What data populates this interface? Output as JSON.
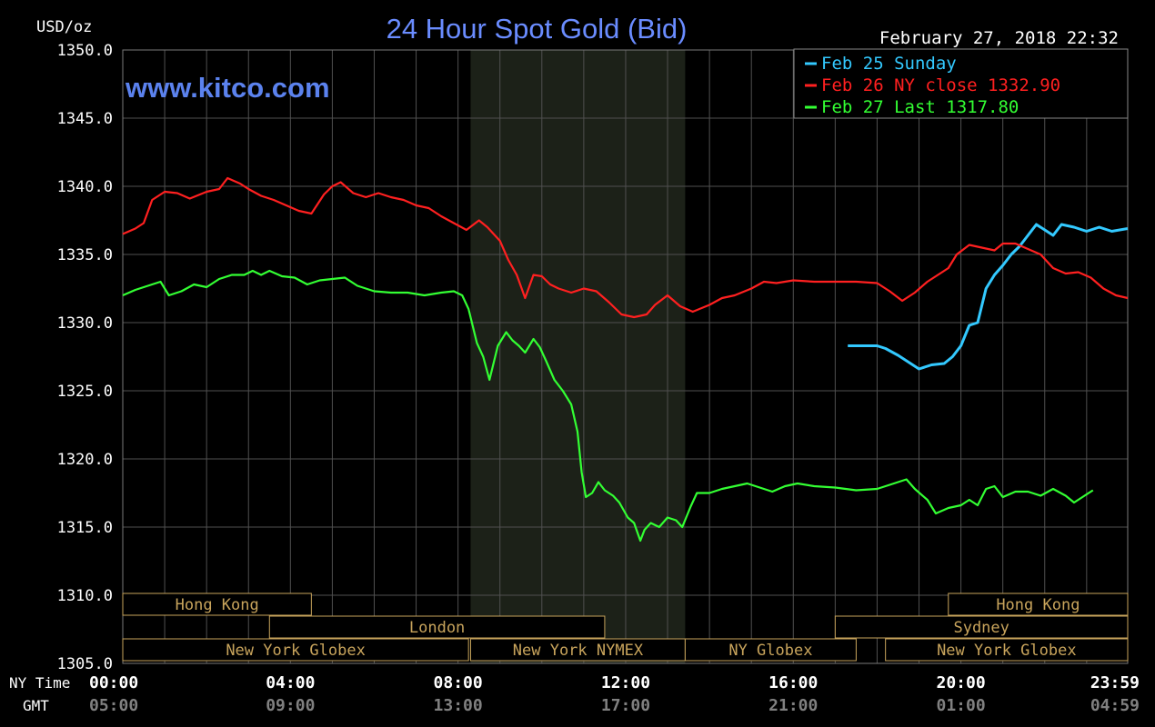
{
  "chart_data": {
    "type": "line",
    "title": "24 Hour Spot Gold (Bid)",
    "watermark": "www.kitco.com",
    "timestamp": "February 27, 2018 22:32",
    "ylabel": "USD/oz",
    "ylim": [
      1305.0,
      1350.0
    ],
    "yticks": [
      "1350.0",
      "1345.0",
      "1340.0",
      "1335.0",
      "1330.0",
      "1325.0",
      "1320.0",
      "1315.0",
      "1310.0",
      "1305.0"
    ],
    "ytick_values": [
      1350,
      1345,
      1340,
      1335,
      1330,
      1325,
      1320,
      1315,
      1310,
      1305
    ],
    "xaxis_label": "NY Time",
    "xaxis_label2": "GMT",
    "xticks": [
      "00:00",
      "04:00",
      "08:00",
      "12:00",
      "16:00",
      "20:00",
      "23:59"
    ],
    "xtick_hours": [
      0,
      4,
      8,
      12,
      16,
      20,
      23.98
    ],
    "gmt_ticks": [
      "05:00",
      "09:00",
      "13:00",
      "17:00",
      "21:00",
      "01:00",
      "04:59"
    ],
    "grid": true,
    "legend_placement": "top-right",
    "colors": {
      "background": "#000000",
      "grid": "#505050",
      "axis_text": "#ffffff",
      "gmt_text": "#808080",
      "title": "#6a8cff",
      "session_box": "#c8a45c",
      "nymex_shade": "#1c2118"
    },
    "shaded_period": [
      8.3,
      13.42
    ],
    "series": [
      {
        "name": "Feb 25 Sunday",
        "label": "Feb 25 Sunday",
        "color": "#33c9ff",
        "points": [
          [
            17.3,
            1328.3
          ],
          [
            18.0,
            1328.3
          ],
          [
            18.2,
            1328.1
          ],
          [
            18.5,
            1327.6
          ],
          [
            18.8,
            1327.0
          ],
          [
            19.0,
            1326.6
          ],
          [
            19.3,
            1326.9
          ],
          [
            19.6,
            1327.0
          ],
          [
            19.8,
            1327.5
          ],
          [
            20.0,
            1328.3
          ],
          [
            20.2,
            1329.8
          ],
          [
            20.4,
            1330.0
          ],
          [
            20.6,
            1332.5
          ],
          [
            20.8,
            1333.5
          ],
          [
            21.0,
            1334.2
          ],
          [
            21.2,
            1335.0
          ],
          [
            21.4,
            1335.6
          ],
          [
            21.6,
            1336.4
          ],
          [
            21.8,
            1337.2
          ],
          [
            22.0,
            1336.8
          ],
          [
            22.2,
            1336.4
          ],
          [
            22.4,
            1337.2
          ],
          [
            22.7,
            1337.0
          ],
          [
            23.0,
            1336.7
          ],
          [
            23.3,
            1337.0
          ],
          [
            23.6,
            1336.7
          ],
          [
            23.98,
            1336.9
          ]
        ]
      },
      {
        "name": "Feb 26 NY close",
        "label": "Feb 26 NY close 1332.90",
        "color": "#ff2020",
        "points": [
          [
            0.0,
            1336.5
          ],
          [
            0.3,
            1336.9
          ],
          [
            0.5,
            1337.3
          ],
          [
            0.7,
            1339.0
          ],
          [
            1.0,
            1339.6
          ],
          [
            1.3,
            1339.5
          ],
          [
            1.6,
            1339.1
          ],
          [
            2.0,
            1339.6
          ],
          [
            2.3,
            1339.8
          ],
          [
            2.5,
            1340.6
          ],
          [
            2.8,
            1340.2
          ],
          [
            3.0,
            1339.8
          ],
          [
            3.3,
            1339.3
          ],
          [
            3.6,
            1339.0
          ],
          [
            3.9,
            1338.6
          ],
          [
            4.2,
            1338.2
          ],
          [
            4.5,
            1338.0
          ],
          [
            4.8,
            1339.4
          ],
          [
            5.0,
            1340.0
          ],
          [
            5.2,
            1340.3
          ],
          [
            5.5,
            1339.5
          ],
          [
            5.8,
            1339.2
          ],
          [
            6.1,
            1339.5
          ],
          [
            6.4,
            1339.2
          ],
          [
            6.7,
            1339.0
          ],
          [
            7.0,
            1338.6
          ],
          [
            7.3,
            1338.4
          ],
          [
            7.6,
            1337.8
          ],
          [
            7.9,
            1337.3
          ],
          [
            8.2,
            1336.8
          ],
          [
            8.5,
            1337.5
          ],
          [
            8.7,
            1337.0
          ],
          [
            9.0,
            1336.0
          ],
          [
            9.2,
            1334.6
          ],
          [
            9.4,
            1333.5
          ],
          [
            9.6,
            1331.8
          ],
          [
            9.8,
            1333.5
          ],
          [
            10.0,
            1333.4
          ],
          [
            10.2,
            1332.8
          ],
          [
            10.4,
            1332.5
          ],
          [
            10.7,
            1332.2
          ],
          [
            11.0,
            1332.5
          ],
          [
            11.3,
            1332.3
          ],
          [
            11.6,
            1331.5
          ],
          [
            11.9,
            1330.6
          ],
          [
            12.2,
            1330.4
          ],
          [
            12.5,
            1330.6
          ],
          [
            12.7,
            1331.3
          ],
          [
            13.0,
            1332.0
          ],
          [
            13.3,
            1331.2
          ],
          [
            13.6,
            1330.8
          ],
          [
            14.0,
            1331.3
          ],
          [
            14.3,
            1331.8
          ],
          [
            14.6,
            1332.0
          ],
          [
            15.0,
            1332.5
          ],
          [
            15.3,
            1333.0
          ],
          [
            15.6,
            1332.9
          ],
          [
            16.0,
            1333.1
          ],
          [
            16.5,
            1333.0
          ],
          [
            17.0,
            1333.0
          ],
          [
            17.5,
            1333.0
          ],
          [
            18.0,
            1332.9
          ],
          [
            18.3,
            1332.3
          ],
          [
            18.6,
            1331.6
          ],
          [
            18.9,
            1332.2
          ],
          [
            19.2,
            1333.0
          ],
          [
            19.5,
            1333.6
          ],
          [
            19.7,
            1334.0
          ],
          [
            19.9,
            1335.0
          ],
          [
            20.2,
            1335.7
          ],
          [
            20.5,
            1335.5
          ],
          [
            20.8,
            1335.3
          ],
          [
            21.0,
            1335.8
          ],
          [
            21.3,
            1335.8
          ],
          [
            21.6,
            1335.4
          ],
          [
            21.9,
            1335.0
          ],
          [
            22.2,
            1334.0
          ],
          [
            22.5,
            1333.6
          ],
          [
            22.8,
            1333.7
          ],
          [
            23.1,
            1333.3
          ],
          [
            23.4,
            1332.5
          ],
          [
            23.7,
            1332.0
          ],
          [
            23.98,
            1331.8
          ]
        ]
      },
      {
        "name": "Feb 27 Last",
        "label": "Feb 27 Last 1317.80",
        "color": "#33ff33",
        "points": [
          [
            0.0,
            1332.0
          ],
          [
            0.3,
            1332.4
          ],
          [
            0.6,
            1332.7
          ],
          [
            0.9,
            1333.0
          ],
          [
            1.1,
            1332.0
          ],
          [
            1.4,
            1332.3
          ],
          [
            1.7,
            1332.8
          ],
          [
            2.0,
            1332.6
          ],
          [
            2.3,
            1333.2
          ],
          [
            2.6,
            1333.5
          ],
          [
            2.9,
            1333.5
          ],
          [
            3.1,
            1333.8
          ],
          [
            3.3,
            1333.5
          ],
          [
            3.5,
            1333.8
          ],
          [
            3.8,
            1333.4
          ],
          [
            4.1,
            1333.3
          ],
          [
            4.4,
            1332.8
          ],
          [
            4.7,
            1333.1
          ],
          [
            5.0,
            1333.2
          ],
          [
            5.3,
            1333.3
          ],
          [
            5.6,
            1332.7
          ],
          [
            6.0,
            1332.3
          ],
          [
            6.4,
            1332.2
          ],
          [
            6.8,
            1332.2
          ],
          [
            7.2,
            1332.0
          ],
          [
            7.6,
            1332.2
          ],
          [
            7.9,
            1332.3
          ],
          [
            8.1,
            1332.0
          ],
          [
            8.25,
            1331.0
          ],
          [
            8.45,
            1328.5
          ],
          [
            8.6,
            1327.5
          ],
          [
            8.75,
            1325.8
          ],
          [
            8.95,
            1328.3
          ],
          [
            9.15,
            1329.3
          ],
          [
            9.3,
            1328.7
          ],
          [
            9.45,
            1328.3
          ],
          [
            9.6,
            1327.8
          ],
          [
            9.8,
            1328.8
          ],
          [
            9.95,
            1328.2
          ],
          [
            10.1,
            1327.2
          ],
          [
            10.3,
            1325.8
          ],
          [
            10.5,
            1325.0
          ],
          [
            10.7,
            1324.0
          ],
          [
            10.85,
            1322.0
          ],
          [
            10.95,
            1319.0
          ],
          [
            11.05,
            1317.2
          ],
          [
            11.2,
            1317.5
          ],
          [
            11.35,
            1318.3
          ],
          [
            11.5,
            1317.7
          ],
          [
            11.7,
            1317.3
          ],
          [
            11.85,
            1316.8
          ],
          [
            12.05,
            1315.7
          ],
          [
            12.2,
            1315.3
          ],
          [
            12.35,
            1314.0
          ],
          [
            12.45,
            1314.8
          ],
          [
            12.6,
            1315.3
          ],
          [
            12.8,
            1315.0
          ],
          [
            13.0,
            1315.7
          ],
          [
            13.2,
            1315.5
          ],
          [
            13.35,
            1315.0
          ],
          [
            13.55,
            1316.5
          ],
          [
            13.7,
            1317.5
          ],
          [
            14.0,
            1317.5
          ],
          [
            14.3,
            1317.8
          ],
          [
            14.6,
            1318.0
          ],
          [
            14.9,
            1318.2
          ],
          [
            15.2,
            1317.9
          ],
          [
            15.5,
            1317.6
          ],
          [
            15.8,
            1318.0
          ],
          [
            16.1,
            1318.2
          ],
          [
            16.5,
            1318.0
          ],
          [
            17.0,
            1317.9
          ],
          [
            17.5,
            1317.7
          ],
          [
            18.0,
            1317.8
          ],
          [
            18.4,
            1318.2
          ],
          [
            18.7,
            1318.5
          ],
          [
            18.9,
            1317.8
          ],
          [
            19.2,
            1317.0
          ],
          [
            19.4,
            1316.0
          ],
          [
            19.7,
            1316.4
          ],
          [
            20.0,
            1316.6
          ],
          [
            20.2,
            1317.0
          ],
          [
            20.4,
            1316.6
          ],
          [
            20.6,
            1317.8
          ],
          [
            20.8,
            1318.0
          ],
          [
            21.0,
            1317.2
          ],
          [
            21.3,
            1317.6
          ],
          [
            21.6,
            1317.6
          ],
          [
            21.9,
            1317.3
          ],
          [
            22.2,
            1317.8
          ],
          [
            22.5,
            1317.3
          ],
          [
            22.7,
            1316.8
          ],
          [
            22.9,
            1317.2
          ],
          [
            23.05,
            1317.5
          ],
          [
            23.15,
            1317.7
          ]
        ]
      }
    ],
    "sessions": [
      {
        "label": "Hong Kong",
        "start": 0.0,
        "end": 4.5,
        "row": 0
      },
      {
        "label": "Hong Kong",
        "start": 19.7,
        "end": 23.98,
        "row": 0
      },
      {
        "label": "London",
        "start": 3.5,
        "end": 11.5,
        "row": 1
      },
      {
        "label": "Sydney",
        "start": 17.0,
        "end": 23.98,
        "row": 1
      },
      {
        "label": "New York Globex",
        "start": 0.0,
        "end": 8.25,
        "row": 2
      },
      {
        "label": "New York NYMEX",
        "start": 8.3,
        "end": 13.42,
        "row": 2
      },
      {
        "label": "NY Globex",
        "start": 13.42,
        "end": 17.5,
        "row": 2
      },
      {
        "label": "New York Globex",
        "start": 18.2,
        "end": 23.98,
        "row": 2
      }
    ]
  }
}
